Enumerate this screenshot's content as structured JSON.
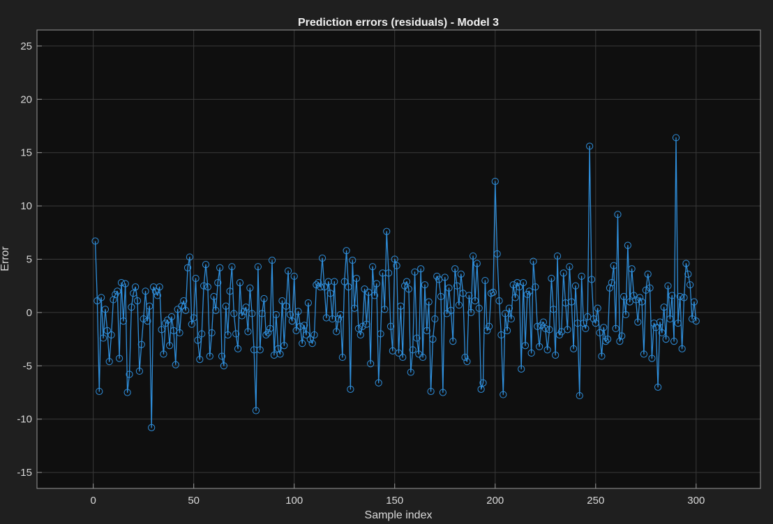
{
  "chart_data": {
    "type": "line",
    "title": "Prediction errors (residuals) - Model 3",
    "xlabel": "Sample index",
    "ylabel": "Error",
    "xlim": [
      -28,
      332
    ],
    "ylim": [
      -16.5,
      26.5
    ],
    "xticks": [
      0,
      50,
      100,
      150,
      200,
      250,
      300
    ],
    "yticks": [
      -15,
      -10,
      -5,
      0,
      5,
      10,
      15,
      20,
      25
    ],
    "grid": true,
    "marker": "circle",
    "colors": {
      "background": "#1f1f1f",
      "axes": "#0f0f0f",
      "grid": "#3a3a3a",
      "line": "#2f8fdc",
      "text": "#d9d9d9",
      "title": "#f0f0f0"
    },
    "series": [
      {
        "x": [
          1,
          2,
          3,
          4,
          5,
          6,
          7,
          8,
          9,
          10,
          11,
          12,
          13,
          14,
          15,
          16,
          17,
          18,
          19,
          20,
          21,
          22,
          23,
          24,
          25,
          26,
          27,
          28,
          29,
          30,
          31,
          32,
          33,
          34,
          35,
          36,
          37,
          38,
          39,
          40,
          41,
          42,
          43,
          44,
          45,
          46,
          47,
          48,
          49,
          50,
          51,
          52,
          53,
          54,
          55,
          56,
          57,
          58,
          59,
          60,
          61,
          62,
          63,
          64,
          65,
          66,
          67,
          68,
          69,
          70,
          71,
          72,
          73,
          74,
          75,
          76,
          77,
          78,
          79,
          80,
          81,
          82,
          83,
          84,
          85,
          86,
          87,
          88,
          89,
          90,
          91,
          92,
          93,
          94,
          95,
          96,
          97,
          98,
          99,
          100,
          101,
          102,
          103,
          104,
          105,
          106,
          107,
          108,
          109,
          110,
          111,
          112,
          113,
          114,
          115,
          116,
          117,
          118,
          119,
          120,
          121,
          122,
          123,
          124,
          125,
          126,
          127,
          128,
          129,
          130,
          131,
          132,
          133,
          134,
          135,
          136,
          137,
          138,
          139,
          140,
          141,
          142,
          143,
          144,
          145,
          146,
          147,
          148,
          149,
          150,
          151,
          152,
          153,
          154,
          155,
          156,
          157,
          158,
          159,
          160,
          161,
          162,
          163,
          164,
          165,
          166,
          167,
          168,
          169,
          170,
          171,
          172,
          173,
          174,
          175,
          176,
          177,
          178,
          179,
          180,
          181,
          182,
          183,
          184,
          185,
          186,
          187,
          188,
          189,
          190,
          191,
          192,
          193,
          194,
          195,
          196,
          197,
          198,
          199,
          200,
          201,
          202,
          203,
          204,
          205,
          206,
          207,
          208,
          209,
          210,
          211,
          212,
          213,
          214,
          215,
          216,
          217,
          218,
          219,
          220,
          221,
          222,
          223,
          224,
          225,
          226,
          227,
          228,
          229,
          230,
          231,
          232,
          233,
          234,
          235,
          236,
          237,
          238,
          239,
          240,
          241,
          242,
          243,
          244,
          245,
          246,
          247,
          248,
          249,
          250,
          251,
          252,
          253,
          254,
          255,
          256,
          257,
          258,
          259,
          260,
          261,
          262,
          263,
          264,
          265,
          266,
          267,
          268,
          269,
          270,
          271,
          272,
          273,
          274,
          275,
          276,
          277,
          278,
          279,
          280,
          281,
          282,
          283,
          284,
          285,
          286,
          287,
          288,
          289,
          290,
          291,
          292,
          293,
          294,
          295,
          296,
          297,
          298,
          299,
          300
        ],
        "y": [
          6.7,
          1.1,
          -7.4,
          1.4,
          -2.4,
          0.3,
          -1.7,
          -4.6,
          -2.1,
          1.2,
          1.7,
          2.0,
          -4.3,
          2.8,
          -0.8,
          2.7,
          -7.5,
          -5.8,
          0.5,
          1.8,
          2.4,
          1.1,
          -5.5,
          -3.0,
          -0.6,
          2.0,
          -0.8,
          0.6,
          -10.8,
          2.4,
          2.0,
          1.6,
          2.4,
          -1.6,
          -3.9,
          -1.0,
          -0.7,
          -3.1,
          -0.4,
          -1.7,
          -4.9,
          0.3,
          -1.9,
          0.6,
          1.1,
          0.2,
          4.2,
          5.2,
          -1.1,
          -0.5,
          3.2,
          -2.6,
          -4.4,
          -2.0,
          2.5,
          4.5,
          2.4,
          -4.1,
          -1.9,
          1.5,
          0.2,
          2.8,
          4.2,
          -4.1,
          -5.0,
          0.6,
          -2.1,
          2.0,
          4.3,
          -0.1,
          -2.0,
          -3.4,
          2.8,
          -0.3,
          0.1,
          0.5,
          -1.8,
          2.3,
          -0.1,
          -3.5,
          -9.2,
          4.3,
          -3.5,
          -0.1,
          1.3,
          -2.1,
          -1.9,
          -1.5,
          4.9,
          -4.0,
          -0.2,
          -3.4,
          -3.9,
          1.1,
          -3.1,
          0.6,
          3.9,
          -0.2,
          -0.8,
          3.4,
          -1.7,
          0.1,
          -1.3,
          -2.9,
          -1.2,
          -2.1,
          0.9,
          -2.5,
          -2.9,
          -2.1,
          2.6,
          2.8,
          2.4,
          5.1,
          2.4,
          -0.5,
          2.9,
          1.8,
          -0.6,
          2.9,
          -1.8,
          -0.6,
          -0.2,
          -4.2,
          2.9,
          5.8,
          2.4,
          -7.2,
          4.9,
          0.4,
          3.2,
          -1.5,
          -2.1,
          -1.3,
          2.2,
          -1.1,
          1.9,
          -4.8,
          4.3,
          1.6,
          2.7,
          -6.6,
          -2.0,
          3.7,
          0.3,
          7.6,
          3.7,
          -1.3,
          -3.6,
          5.0,
          4.4,
          -3.8,
          0.6,
          -4.2,
          2.5,
          2.9,
          2.2,
          -5.6,
          -3.5,
          3.8,
          -2.4,
          -3.9,
          4.1,
          -4.2,
          2.6,
          -1.7,
          1.0,
          -7.4,
          -2.5,
          -0.6,
          3.4,
          3.1,
          1.5,
          -7.5,
          3.3,
          -0.1,
          2.3,
          0.2,
          -2.7,
          4.1,
          2.5,
          0.7,
          3.6,
          1.8,
          -4.2,
          -4.6,
          1.6,
          0.0,
          5.3,
          1.1,
          4.6,
          0.4,
          -7.2,
          -6.6,
          3.0,
          -1.7,
          -1.3,
          1.8,
          1.9,
          12.3,
          5.5,
          1.1,
          -2.1,
          -7.7,
          -0.1,
          -1.7,
          0.4,
          -0.6,
          2.6,
          1.4,
          2.8,
          2.4,
          -5.3,
          2.8,
          -3.1,
          1.7,
          2.0,
          -3.8,
          4.8,
          2.4,
          -1.3,
          -3.2,
          -1.2,
          -0.9,
          -1.5,
          -3.5,
          -1.6,
          3.2,
          0.3,
          -4.0,
          5.3,
          -2.1,
          -1.8,
          3.7,
          0.9,
          -1.6,
          4.3,
          1.0,
          -3.4,
          2.5,
          -1.0,
          -7.8,
          3.4,
          -1.0,
          -1.5,
          -0.4,
          15.6,
          3.1,
          -0.6,
          -1.0,
          0.4,
          -1.9,
          -4.1,
          -1.4,
          -2.7,
          -2.5,
          2.3,
          2.8,
          4.4,
          -1.5,
          9.2,
          -2.7,
          -2.2,
          1.5,
          -0.2,
          6.3,
          1.0,
          4.1,
          1.6,
          1.2,
          -0.9,
          1.4,
          1.0,
          -3.9,
          2.1,
          3.6,
          2.3,
          -4.3,
          -1.0,
          -1.4,
          -7.0,
          -0.9,
          -1.9,
          0.5,
          -2.5,
          2.5,
          -0.6,
          1.6,
          -2.7,
          16.4,
          -1.0,
          1.5,
          -3.4,
          1.4,
          4.6,
          3.6,
          2.6,
          -0.6,
          1.0,
          -0.8
        ]
      }
    ]
  }
}
